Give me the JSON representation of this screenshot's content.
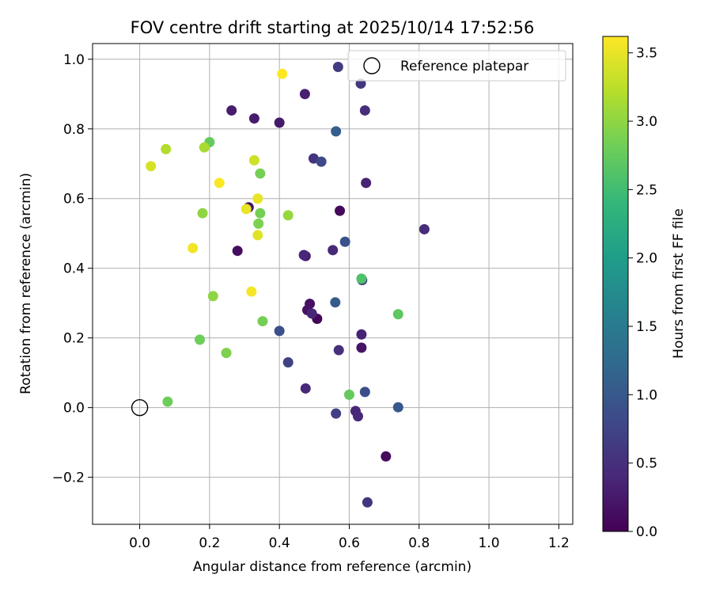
{
  "chart_data": {
    "type": "scatter",
    "title": "FOV centre drift starting at 2025/10/14 17:52:56",
    "xlabel": "Angular distance from reference (arcmin)",
    "ylabel": "Rotation from reference (arcmin)",
    "xlim": [
      -0.135,
      1.24
    ],
    "ylim": [
      -0.335,
      1.045
    ],
    "xticks": [
      0.0,
      0.2,
      0.4,
      0.6,
      0.8,
      1.0,
      1.2
    ],
    "xtick_labels": [
      "0.0",
      "0.2",
      "0.4",
      "0.6",
      "0.8",
      "1.0",
      "1.2"
    ],
    "yticks": [
      -0.2,
      0.0,
      0.2,
      0.4,
      0.6,
      0.8,
      1.0
    ],
    "ytick_labels": [
      "−0.2",
      "0.0",
      "0.2",
      "0.4",
      "0.6",
      "0.8",
      "1.0"
    ],
    "grid": true,
    "legend": {
      "location": "upper-right",
      "entries": [
        "Reference platepar"
      ]
    },
    "reference_point": {
      "label": "Reference platepar",
      "x": 0.0,
      "y": 0.0
    },
    "colorbar": {
      "label": "Hours from first FF file",
      "range": [
        0.0,
        3.62
      ],
      "ticks": [
        0.0,
        0.5,
        1.0,
        1.5,
        2.0,
        2.5,
        3.0,
        3.5
      ],
      "tick_labels": [
        "0.0",
        "0.5",
        "1.0",
        "1.5",
        "2.0",
        "2.5",
        "3.0",
        "3.5"
      ],
      "colormap": "viridis",
      "colormap_stops": [
        "#440154",
        "#482878",
        "#3e4989",
        "#31688e",
        "#26828e",
        "#1f9e89",
        "#35b779",
        "#6ece58",
        "#b5de2b",
        "#fde725"
      ]
    },
    "points": [
      {
        "x": 0.508,
        "y": 0.255,
        "c": 0.05
      },
      {
        "x": 0.573,
        "y": 0.565,
        "c": 0.08
      },
      {
        "x": 0.705,
        "y": -0.14,
        "c": 0.1
      },
      {
        "x": 0.28,
        "y": 0.45,
        "c": 0.12
      },
      {
        "x": 0.487,
        "y": 0.298,
        "c": 0.15
      },
      {
        "x": 0.48,
        "y": 0.28,
        "c": 0.18
      },
      {
        "x": 0.635,
        "y": 0.172,
        "c": 0.2
      },
      {
        "x": 0.475,
        "y": 0.435,
        "c": 0.22
      },
      {
        "x": 0.312,
        "y": 0.575,
        "c": 0.22
      },
      {
        "x": 0.4,
        "y": 0.818,
        "c": 0.25
      },
      {
        "x": 0.328,
        "y": 0.83,
        "c": 0.28
      },
      {
        "x": 0.263,
        "y": 0.853,
        "c": 0.3
      },
      {
        "x": 0.473,
        "y": 0.9,
        "c": 0.32
      },
      {
        "x": 0.648,
        "y": 0.645,
        "c": 0.35
      },
      {
        "x": 0.635,
        "y": 0.21,
        "c": 0.35
      },
      {
        "x": 0.618,
        "y": -0.01,
        "c": 0.38
      },
      {
        "x": 0.493,
        "y": 0.27,
        "c": 0.38
      },
      {
        "x": 0.553,
        "y": 0.452,
        "c": 0.4
      },
      {
        "x": 0.47,
        "y": 0.438,
        "c": 0.4
      },
      {
        "x": 0.625,
        "y": -0.025,
        "c": 0.42
      },
      {
        "x": 0.475,
        "y": 0.055,
        "c": 0.42
      },
      {
        "x": 0.815,
        "y": 0.512,
        "c": 0.45
      },
      {
        "x": 0.645,
        "y": 0.853,
        "c": 0.48
      },
      {
        "x": 0.57,
        "y": 0.165,
        "c": 0.5
      },
      {
        "x": 0.498,
        "y": 0.715,
        "c": 0.55
      },
      {
        "x": 0.652,
        "y": -0.272,
        "c": 0.55
      },
      {
        "x": 0.633,
        "y": 0.93,
        "c": 0.6
      },
      {
        "x": 0.637,
        "y": 0.366,
        "c": 0.62
      },
      {
        "x": 0.568,
        "y": 0.978,
        "c": 0.65
      },
      {
        "x": 0.562,
        "y": -0.017,
        "c": 0.7
      },
      {
        "x": 0.425,
        "y": 0.13,
        "c": 0.72
      },
      {
        "x": 0.52,
        "y": 0.706,
        "c": 0.8
      },
      {
        "x": 0.645,
        "y": 0.045,
        "c": 0.85
      },
      {
        "x": 0.4,
        "y": 0.22,
        "c": 0.88
      },
      {
        "x": 0.588,
        "y": 0.476,
        "c": 0.92
      },
      {
        "x": 0.74,
        "y": 0.001,
        "c": 1.0
      },
      {
        "x": 0.56,
        "y": 0.302,
        "c": 1.05
      },
      {
        "x": 0.562,
        "y": 0.793,
        "c": 1.08
      },
      {
        "x": 0.635,
        "y": 0.37,
        "c": 2.6
      },
      {
        "x": 0.74,
        "y": 0.268,
        "c": 2.7
      },
      {
        "x": 0.6,
        "y": 0.037,
        "c": 2.75
      },
      {
        "x": 0.2,
        "y": 0.762,
        "c": 2.75
      },
      {
        "x": 0.172,
        "y": 0.195,
        "c": 2.8
      },
      {
        "x": 0.08,
        "y": 0.017,
        "c": 2.8
      },
      {
        "x": 0.352,
        "y": 0.248,
        "c": 2.85
      },
      {
        "x": 0.345,
        "y": 0.672,
        "c": 2.85
      },
      {
        "x": 0.345,
        "y": 0.558,
        "c": 2.85
      },
      {
        "x": 0.34,
        "y": 0.528,
        "c": 2.9
      },
      {
        "x": 0.248,
        "y": 0.157,
        "c": 2.9
      },
      {
        "x": 0.21,
        "y": 0.32,
        "c": 3.0
      },
      {
        "x": 0.18,
        "y": 0.558,
        "c": 3.0
      },
      {
        "x": 0.425,
        "y": 0.552,
        "c": 3.05
      },
      {
        "x": 0.185,
        "y": 0.747,
        "c": 3.15
      },
      {
        "x": 0.075,
        "y": 0.742,
        "c": 3.2
      },
      {
        "x": 0.328,
        "y": 0.71,
        "c": 3.35
      },
      {
        "x": 0.032,
        "y": 0.693,
        "c": 3.4
      },
      {
        "x": 0.338,
        "y": 0.495,
        "c": 3.45
      },
      {
        "x": 0.305,
        "y": 0.57,
        "c": 3.5
      },
      {
        "x": 0.338,
        "y": 0.6,
        "c": 3.5
      },
      {
        "x": 0.152,
        "y": 0.458,
        "c": 3.55
      },
      {
        "x": 0.32,
        "y": 0.333,
        "c": 3.58
      },
      {
        "x": 0.228,
        "y": 0.645,
        "c": 3.6
      },
      {
        "x": 0.408,
        "y": 0.958,
        "c": 3.62
      }
    ]
  }
}
